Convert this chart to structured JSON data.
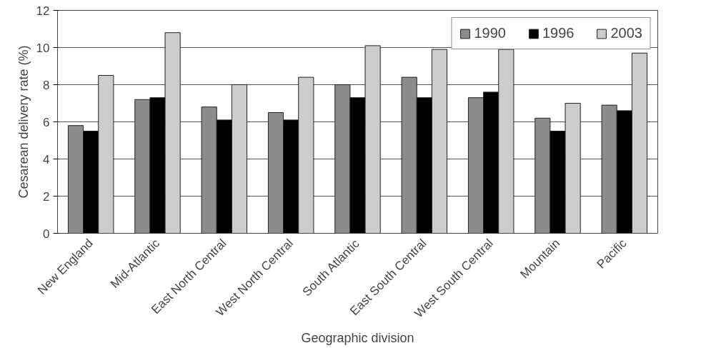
{
  "chart_data": {
    "type": "bar",
    "xlabel": "Geographic division",
    "ylabel": "Cesarean delivery rate (%)",
    "categories": [
      "New England",
      "Mid-Atlantic",
      "East North Central",
      "West North Central",
      "South Atlantic",
      "East South Central",
      "West South Central",
      "Mountain",
      "Pacific"
    ],
    "series": [
      {
        "name": "1990",
        "color": "#8c8c8c",
        "values": [
          5.8,
          7.2,
          6.8,
          6.5,
          8.0,
          8.4,
          7.3,
          6.2,
          6.9
        ]
      },
      {
        "name": "1996",
        "color": "#000000",
        "values": [
          5.5,
          7.3,
          6.1,
          6.1,
          7.3,
          7.3,
          7.6,
          5.5,
          6.6
        ]
      },
      {
        "name": "2003",
        "color": "#cccccc",
        "values": [
          8.5,
          10.8,
          8.0,
          8.4,
          10.1,
          9.9,
          9.9,
          7.0,
          9.7
        ]
      }
    ],
    "ylim": [
      0,
      12
    ],
    "yticks": [
      0,
      2,
      4,
      6,
      8,
      10,
      12
    ],
    "grid": "y",
    "legend": "top right"
  }
}
